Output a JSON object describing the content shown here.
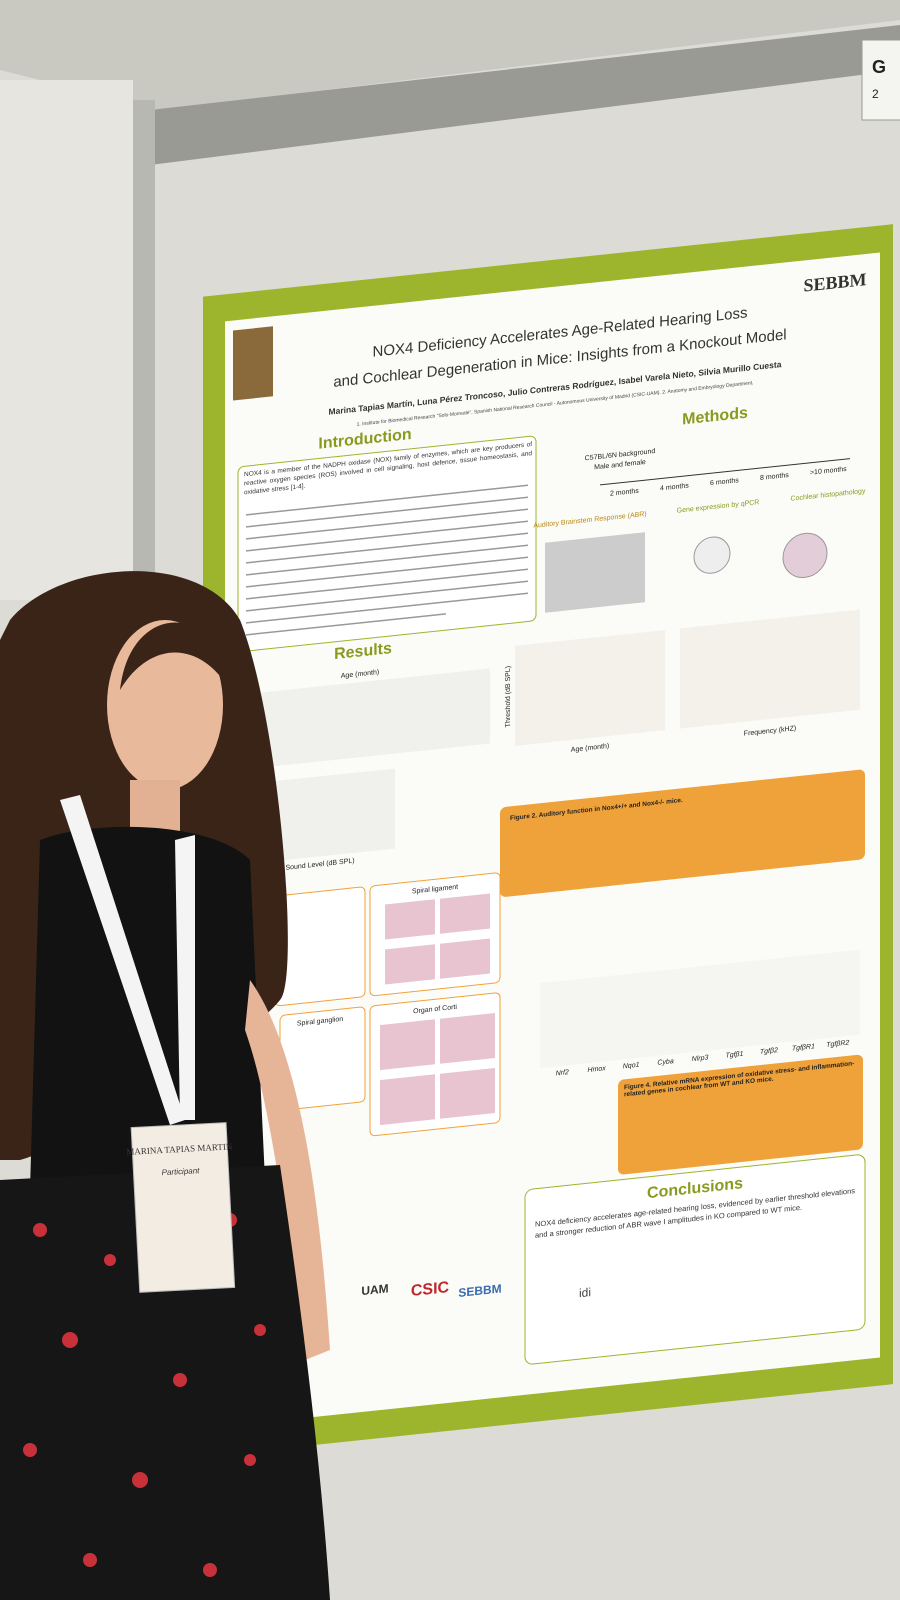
{
  "sign": {
    "letter": "G",
    "number": "2"
  },
  "poster": {
    "logo": "SEBBM",
    "title": [
      "NOX4 Deficiency Accelerates Age-Related Hearing Loss",
      "and Cochlear Degeneration in Mice: Insights from a Knockout Model"
    ],
    "authors": "Marina Tapias Martín, Luna Pérez Troncoso, Julio Contreras Rodríguez, Isabel Varela Nieto, Silvia Murillo Cuesta",
    "affiliations": "1. Institute for Biomedical Research \"Sols-Morreale\", Spanish National Research Council - Autonomous University of Madrid (CSIC-UAM). 2. Anatomy and Embryology Department,",
    "sections": {
      "introduction": "Introduction",
      "methods": "Methods",
      "results": "Results",
      "conclusions": "Conclusions"
    },
    "introduction_text": "NOX4 is a member of the NADPH oxidase (NOX) family of enzymes, which are key producers of reactive oxygen species (ROS) involved in cell signaling, host defence, tissue homeostasis, and oxidative stress [1-4].",
    "methods_labels": {
      "background": "C57BL/6N background",
      "sex": "Male and female",
      "ages": [
        "2 months",
        "4 months",
        "6 months",
        "8 months",
        ">10 months"
      ],
      "abr": "Auditory Brainstem Response (ABR)",
      "qpcr": "Gene expression by qPCR",
      "histo": "Cochlear histopathology"
    },
    "results_labels": {
      "age": "Age (month)",
      "frequency": "Frequency (kHZ)",
      "threshold": "Threshold (dB SPL)",
      "sound": "Sound Level (dB SPL)"
    },
    "figure2_caption": "Figure 2. Auditory function in Nox4+/+ and Nox4-/- mice.",
    "histology_labels": [
      "Spiral ligament",
      "Spiral ganglion",
      "Organ of Corti"
    ],
    "genes": [
      "Nrf2",
      "Hmox",
      "Nqo1",
      "Cyba",
      "Nlrp3",
      "Tgfβ1",
      "Tgfβ2",
      "TgfβR1",
      "TgfβR2"
    ],
    "figure4_caption": "Figure 4. Relative mRNA expression of oxidative stress- and inflammation-related genes in cochlear from WT and KO mice.",
    "conclusions_text": "NOX4 deficiency accelerates age-related hearing loss, evidenced by earlier threshold elevations and a stronger reduction of ABR wave I amplitudes in KO compared to WT mice.",
    "sponsors": [
      "UAM",
      "CSIC",
      "SEBBM",
      "idi"
    ]
  },
  "badge": {
    "name": "MARINA TAPIAS MARTIN",
    "role": "Participant"
  }
}
